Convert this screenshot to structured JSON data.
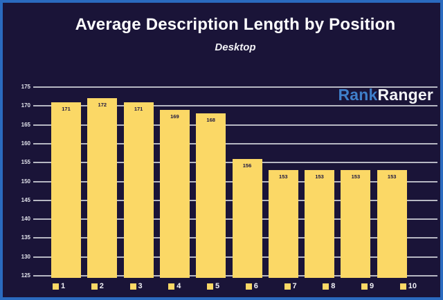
{
  "frame": {
    "border_color": "#2a6abf",
    "background_color": "#1a1438"
  },
  "header": {
    "title": "Average Description Length by Position",
    "subtitle": "Desktop"
  },
  "logo": {
    "part1": "Rank",
    "part2": "Ranger",
    "part1_color": "#3f7fca",
    "part2_color": "#f2f3f5"
  },
  "chart_data": {
    "type": "bar",
    "title": "Average Description Length by Position",
    "subtitle": "Desktop",
    "categories": [
      "1",
      "2",
      "3",
      "4",
      "5",
      "6",
      "7",
      "8",
      "9",
      "10"
    ],
    "values": [
      171,
      172,
      171,
      169,
      168,
      156,
      153,
      153,
      153,
      153
    ],
    "xlabel": "",
    "ylabel": "",
    "ylim": [
      124,
      176
    ],
    "yticks": [
      175,
      170,
      165,
      160,
      155,
      150,
      145,
      140,
      135,
      130,
      125
    ],
    "grid": true,
    "bar_color": "#fbd866",
    "gridline_color": "#b7b8c3",
    "value_label_color": "#1b1540",
    "legend_position": "bottom"
  }
}
